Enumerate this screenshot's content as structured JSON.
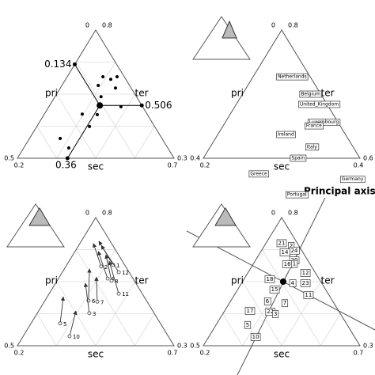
{
  "chart_data": [
    {
      "type": "ternary",
      "labels": [
        "pri",
        "sec",
        "ter"
      ],
      "ticks": {
        "top": [
          0,
          0.8
        ],
        "left": [
          0.5,
          0.2
        ],
        "right": [
          0.3,
          0.7
        ]
      },
      "grid": true,
      "inset": false,
      "points": {
        "pri": [
          0.068,
          0.048,
          0.023,
          0.1,
          0.05,
          0.113,
          0.069,
          0.207,
          0.16,
          0.208,
          0.325,
          0.316,
          0.341
        ],
        "sec": [
          0.314,
          0.344,
          0.359,
          0.316,
          0.376,
          0.347,
          0.43,
          0.321,
          0.37,
          0.368,
          0.298,
          0.344,
          0.359
        ]
      },
      "center": {
        "pri": 0.134,
        "sec": 0.36,
        "ter": 0.506
      }
    },
    {
      "type": "ternary",
      "labels": [
        "pri",
        "sec",
        "ter"
      ],
      "ticks": {
        "top": [
          0,
          0.8
        ],
        "left": [
          0.4,
          0.2
        ],
        "right": [
          0.6,
          0.4
        ]
      },
      "grid": false,
      "inset": true,
      "points": {
        "names": [
          "Netherlands",
          "Belgium",
          "United_Kingdom",
          "Luxembourg",
          "France",
          "Italy",
          "Ireland",
          "Germany",
          "Spain",
          "Greece",
          "Portugal"
        ],
        "pri": [
          0.046,
          0.026,
          0.02,
          0.036,
          0.067,
          0.105,
          0.152,
          0.052,
          0.158,
          0.283,
          0.218
        ],
        "sec": [
          0.25,
          0.287,
          0.306,
          0.326,
          0.316,
          0.33,
          0.287,
          0.407,
          0.321,
          0.283,
          0.348
        ]
      }
    },
    {
      "type": "ternary",
      "labels": [
        "pri",
        "sec",
        "ter"
      ],
      "ticks": {
        "top": [
          0,
          0.8
        ],
        "left": [
          0.5,
          0.2
        ],
        "right": [
          0.3,
          0.7
        ]
      },
      "grid": true,
      "inset": true,
      "arrows": {
        "names": [
          "1",
          "2",
          "12",
          "4",
          "8",
          "11",
          "6",
          "7",
          "3",
          "5",
          "10"
        ],
        "pri": [
          0.037,
          0.078,
          0.033,
          0.081,
          0.073,
          0.075,
          0.185,
          0.159,
          0.207,
          0.32,
          0.315
        ],
        "sec": [
          0.348,
          0.313,
          0.38,
          0.357,
          0.374,
          0.422,
          0.339,
          0.369,
          0.366,
          0.293,
          0.348
        ],
        "pri_to": [
          0.036,
          0.058,
          0.037,
          0.058,
          0.04,
          0.042,
          0.12,
          0.114,
          0.161,
          0.258,
          0.245
        ],
        "sec_to": [
          0.256,
          0.243,
          0.272,
          0.274,
          0.305,
          0.328,
          0.28,
          0.318,
          0.295,
          0.251,
          0.319
        ]
      }
    },
    {
      "type": "ternary",
      "labels": [
        "pri",
        "sec",
        "ter"
      ],
      "ticks": {
        "top": [
          0,
          0.8
        ],
        "left": [
          0.5,
          0.2
        ],
        "right": [
          0.3,
          0.7
        ]
      },
      "grid": true,
      "inset": true,
      "annotation": "Principal axis",
      "points": {
        "names": [
          "21",
          "2",
          "24",
          "14",
          "20",
          "16",
          "1",
          "12",
          "18",
          "4",
          "23",
          "15",
          "11",
          "6",
          "7",
          "17",
          "22",
          "3",
          "5",
          "10"
        ],
        "pri": [
          0.05,
          0.025,
          0.024,
          0.058,
          0.043,
          0.073,
          0.05,
          0.032,
          0.158,
          0.093,
          0.052,
          0.163,
          0.066,
          0.209,
          0.157,
          0.283,
          0.22,
          0.208,
          0.318,
          0.316
        ],
        "sec": [
          0.25,
          0.286,
          0.305,
          0.278,
          0.324,
          0.309,
          0.331,
          0.384,
          0.282,
          0.363,
          0.404,
          0.318,
          0.437,
          0.318,
          0.377,
          0.281,
          0.348,
          0.368,
          0.301,
          0.35
        ]
      },
      "center": {
        "pri": 0.12,
        "sec": 0.33
      }
    }
  ]
}
